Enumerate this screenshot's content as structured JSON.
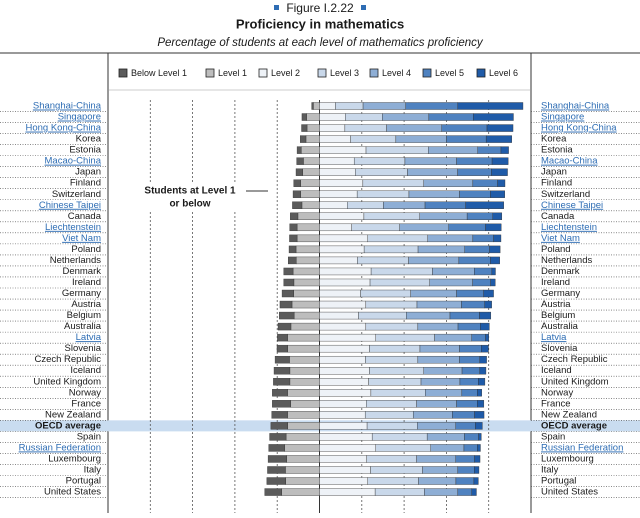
{
  "chart_data": {
    "type": "diverging-stacked-bar",
    "figure_label": "Figure I.2.22",
    "title": "Proficiency in mathematics",
    "subtitle": "Percentage of students at each level of mathematics proficiency",
    "annotation_lines": [
      "Students at Level 1",
      "or below"
    ],
    "xlim": [
      -100,
      100
    ],
    "xticks": [
      -80,
      -60,
      -40,
      -20,
      0,
      20,
      40,
      60,
      80
    ],
    "grid": true,
    "highlighted_categories": [
      "OECD average"
    ],
    "categories": [
      "Shanghai-China",
      "Singapore",
      "Hong Kong-China",
      "Korea",
      "Estonia",
      "Macao-China",
      "Japan",
      "Finland",
      "Switzerland",
      "Chinese Taipei",
      "Canada",
      "Liechtenstein",
      "Viet Nam",
      "Poland",
      "Netherlands",
      "Denmark",
      "Ireland",
      "Germany",
      "Austria",
      "Belgium",
      "Australia",
      "Latvia",
      "Slovenia",
      "Czech Republic",
      "Iceland",
      "United Kingdom",
      "Norway",
      "France",
      "New Zealand",
      "OECD average",
      "Spain",
      "Russian Federation",
      "Luxembourg",
      "Italy",
      "Portugal",
      "United States"
    ],
    "category_colors": [
      "#2e6db4",
      "#2e6db4",
      "#2e6db4",
      "#1a1a1a",
      "#1a1a1a",
      "#2e6db4",
      "#1a1a1a",
      "#1a1a1a",
      "#1a1a1a",
      "#2e6db4",
      "#1a1a1a",
      "#2e6db4",
      "#2e6db4",
      "#1a1a1a",
      "#1a1a1a",
      "#1a1a1a",
      "#1a1a1a",
      "#1a1a1a",
      "#1a1a1a",
      "#1a1a1a",
      "#1a1a1a",
      "#2e6db4",
      "#1a1a1a",
      "#1a1a1a",
      "#1a1a1a",
      "#1a1a1a",
      "#1a1a1a",
      "#1a1a1a",
      "#1a1a1a",
      "#1a1a1a",
      "#1a1a1a",
      "#2e6db4",
      "#1a1a1a",
      "#1a1a1a",
      "#1a1a1a",
      "#1a1a1a"
    ],
    "series": [
      {
        "name": "Below Level 1",
        "color": "#5b5b5b",
        "side": "left",
        "values": [
          0.8,
          2.2,
          2.6,
          2.7,
          2.0,
          3.2,
          3.2,
          3.3,
          3.6,
          4.5,
          3.6,
          3.5,
          3.6,
          3.3,
          3.8,
          4.4,
          4.8,
          5.5,
          5.7,
          7.0,
          6.1,
          4.8,
          5.1,
          6.8,
          7.5,
          7.8,
          7.2,
          8.7,
          7.5,
          8.0,
          7.8,
          7.5,
          8.8,
          8.5,
          8.9,
          8.0
        ]
      },
      {
        "name": "Level 1",
        "color": "#bdbdbd",
        "side": "left",
        "values": [
          2.9,
          6.1,
          5.9,
          6.4,
          8.6,
          7.6,
          7.9,
          8.9,
          8.9,
          8.3,
          10.2,
          10.6,
          10.6,
          11.1,
          11.0,
          12.5,
          12.1,
          12.2,
          13.0,
          12.0,
          13.5,
          15.1,
          15.0,
          14.2,
          14.0,
          14.0,
          15.1,
          13.6,
          15.1,
          15.0,
          15.8,
          16.5,
          15.5,
          16.1,
          16.0,
          17.9
        ]
      },
      {
        "name": "Level 2",
        "color": "#eef2f7",
        "side": "right",
        "values": [
          7.5,
          12.2,
          12.0,
          14.7,
          22.0,
          16.4,
          16.9,
          20.5,
          17.8,
          13.1,
          21.0,
          15.2,
          22.8,
          21.1,
          17.9,
          24.4,
          23.9,
          19.4,
          21.9,
          18.4,
          21.9,
          26.6,
          23.6,
          21.7,
          23.6,
          23.2,
          24.3,
          22.1,
          21.6,
          22.5,
          24.9,
          26.6,
          22.3,
          24.1,
          22.8,
          26.3
        ]
      },
      {
        "name": "Level 3",
        "color": "#c9d8ea",
        "side": "right",
        "values": [
          13.1,
          17.5,
          19.7,
          21.4,
          29.4,
          24.0,
          24.7,
          28.8,
          24.5,
          17.1,
          26.4,
          22.7,
          28.4,
          25.5,
          24.2,
          29.0,
          28.2,
          23.7,
          24.2,
          22.6,
          24.6,
          27.8,
          23.9,
          24.8,
          25.7,
          24.8,
          25.7,
          23.8,
          22.7,
          23.7,
          26.0,
          26.0,
          23.6,
          24.6,
          24.0,
          23.3
        ]
      },
      {
        "name": "Level 4",
        "color": "#8eaed5",
        "side": "right",
        "values": [
          20.2,
          22.0,
          26.1,
          23.9,
          23.4,
          24.4,
          23.7,
          23.2,
          23.9,
          19.7,
          22.4,
          23.2,
          21.3,
          22.1,
          23.8,
          19.8,
          20.3,
          21.7,
          21.0,
          20.7,
          19.0,
          17.6,
          18.7,
          19.7,
          18.1,
          18.4,
          17.3,
          18.9,
          18.5,
          18.2,
          17.6,
          15.7,
          18.5,
          16.7,
          17.7,
          15.8
        ]
      },
      {
        "name": "Level 5",
        "color": "#4f82c0",
        "side": "right",
        "values": [
          24.6,
          21.0,
          21.4,
          18.8,
          11.0,
          16.8,
          16.0,
          11.7,
          14.6,
          19.2,
          12.1,
          17.4,
          9.8,
          11.7,
          14.9,
          8.3,
          8.5,
          12.8,
          11.0,
          13.9,
          10.5,
          6.5,
          10.3,
          9.6,
          8.4,
          8.7,
          7.3,
          9.8,
          10.5,
          9.3,
          6.7,
          6.3,
          8.9,
          7.8,
          8.5,
          6.6
        ]
      },
      {
        "name": "Level 6",
        "color": "#1f5ba8",
        "side": "right",
        "values": [
          30.8,
          19.0,
          12.3,
          12.1,
          3.6,
          7.6,
          7.6,
          3.5,
          6.8,
          18.0,
          4.3,
          7.4,
          3.5,
          5.0,
          4.4,
          1.7,
          2.2,
          4.7,
          3.3,
          5.4,
          4.3,
          1.5,
          3.4,
          3.2,
          2.9,
          3.1,
          2.1,
          3.1,
          4.5,
          3.3,
          1.3,
          1.5,
          2.6,
          2.2,
          2.1,
          2.2
        ]
      }
    ]
  }
}
